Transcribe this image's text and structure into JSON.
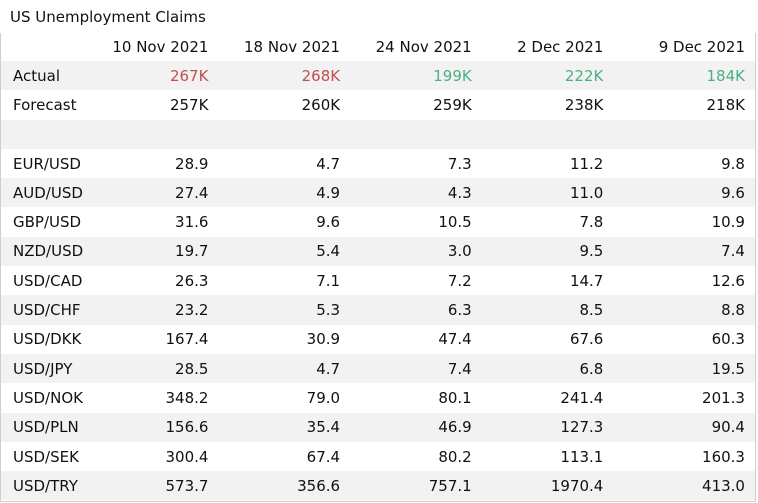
{
  "title": "US Unemployment Claims",
  "chart_data": {
    "type": "table",
    "columns": [
      "10 Nov 2021",
      "18 Nov 2021",
      "24 Nov 2021",
      "2 Dec 2021",
      "9 Dec 2021"
    ],
    "claims": {
      "actual": {
        "label": "Actual",
        "values": [
          "267K",
          "268K",
          "199K",
          "222K",
          "184K"
        ],
        "colors": [
          "#c0504d",
          "#c0504d",
          "#4caf82",
          "#4caf82",
          "#4caf82"
        ]
      },
      "forecast": {
        "label": "Forecast",
        "values": [
          "257K",
          "260K",
          "259K",
          "238K",
          "218K"
        ]
      }
    },
    "rows": [
      {
        "pair": "EUR/USD",
        "values": [
          "28.9",
          "4.7",
          "7.3",
          "11.2",
          "9.8"
        ]
      },
      {
        "pair": "AUD/USD",
        "values": [
          "27.4",
          "4.9",
          "4.3",
          "11.0",
          "9.6"
        ]
      },
      {
        "pair": "GBP/USD",
        "values": [
          "31.6",
          "9.6",
          "10.5",
          "7.8",
          "10.9"
        ]
      },
      {
        "pair": "NZD/USD",
        "values": [
          "19.7",
          "5.4",
          "3.0",
          "9.5",
          "7.4"
        ]
      },
      {
        "pair": "USD/CAD",
        "values": [
          "26.3",
          "7.1",
          "7.2",
          "14.7",
          "12.6"
        ]
      },
      {
        "pair": "USD/CHF",
        "values": [
          "23.2",
          "5.3",
          "6.3",
          "8.5",
          "8.8"
        ]
      },
      {
        "pair": "USD/DKK",
        "values": [
          "167.4",
          "30.9",
          "47.4",
          "67.6",
          "60.3"
        ]
      },
      {
        "pair": "USD/JPY",
        "values": [
          "28.5",
          "4.7",
          "7.4",
          "6.8",
          "19.5"
        ]
      },
      {
        "pair": "USD/NOK",
        "values": [
          "348.2",
          "79.0",
          "80.1",
          "241.4",
          "201.3"
        ]
      },
      {
        "pair": "USD/PLN",
        "values": [
          "156.6",
          "35.4",
          "46.9",
          "127.3",
          "90.4"
        ]
      },
      {
        "pair": "USD/SEK",
        "values": [
          "300.4",
          "67.4",
          "80.2",
          "113.1",
          "160.3"
        ]
      },
      {
        "pair": "USD/TRY",
        "values": [
          "573.7",
          "356.6",
          "757.1",
          "1970.4",
          "413.0"
        ]
      }
    ]
  }
}
